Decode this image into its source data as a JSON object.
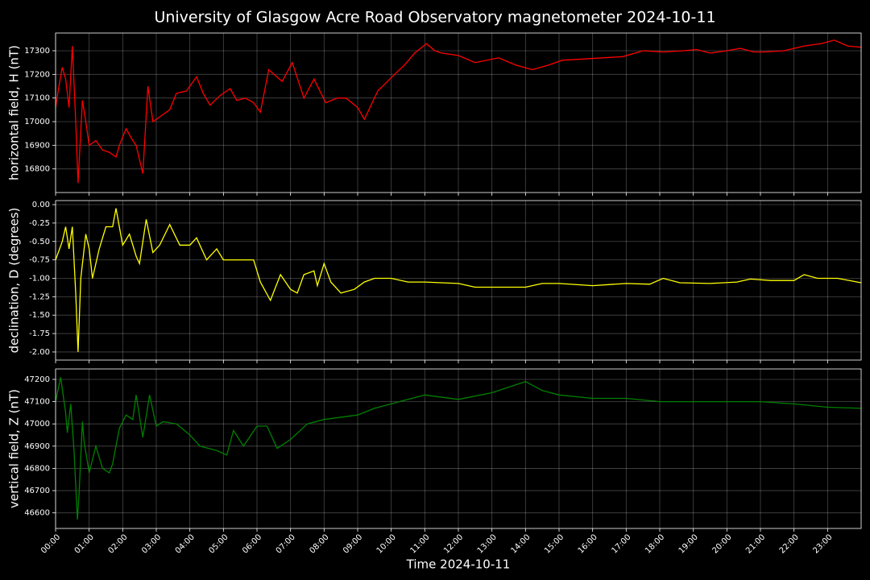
{
  "chart_data": [
    {
      "type": "line",
      "title": "University of Glasgow Acre Road Observatory magnetometer 2024-10-11",
      "ylabel": "horizontal field, H (nT)",
      "color": "#ff0000",
      "grid": true,
      "ylim": [
        16700,
        17375
      ],
      "yticks": [
        16800,
        16900,
        17000,
        17100,
        17200,
        17300
      ],
      "x": [
        0,
        0.1,
        0.2,
        0.3,
        0.4,
        0.5,
        0.6,
        0.67,
        0.8,
        0.9,
        1.0,
        1.2,
        1.4,
        1.6,
        1.8,
        1.9,
        2.1,
        2.3,
        2.4,
        2.6,
        2.75,
        2.9,
        3.1,
        3.4,
        3.6,
        3.9,
        4.2,
        4.4,
        4.6,
        4.9,
        5.2,
        5.4,
        5.65,
        5.9,
        6.1,
        6.35,
        6.75,
        7.05,
        7.4,
        7.7,
        8.05,
        8.4,
        8.65,
        9.0,
        9.2,
        9.6,
        10.1,
        10.4,
        10.7,
        11.05,
        11.3,
        11.5,
        12.0,
        12.5,
        13.2,
        13.7,
        14.2,
        14.7,
        15.1,
        15.7,
        16.3,
        16.9,
        17.5,
        18.1,
        18.7,
        19.1,
        19.5,
        20.0,
        20.4,
        20.8,
        21.1,
        21.7,
        22.3,
        22.8,
        23.2,
        23.6,
        24.0
      ],
      "values": [
        17060,
        17150,
        17230,
        17180,
        17060,
        17320,
        17000,
        16740,
        17090,
        17000,
        16900,
        16920,
        16880,
        16870,
        16850,
        16900,
        16970,
        16920,
        16900,
        16780,
        17150,
        17000,
        17020,
        17050,
        17120,
        17130,
        17190,
        17120,
        17070,
        17110,
        17140,
        17090,
        17100,
        17080,
        17040,
        17220,
        17170,
        17250,
        17100,
        17180,
        17080,
        17100,
        17100,
        17060,
        17010,
        17130,
        17200,
        17240,
        17290,
        17330,
        17300,
        17290,
        17280,
        17250,
        17270,
        17240,
        17220,
        17240,
        17260,
        17265,
        17270,
        17275,
        17300,
        17295,
        17300,
        17305,
        17290,
        17300,
        17310,
        17295,
        17295,
        17300,
        17320,
        17330,
        17345,
        17320,
        17315
      ]
    },
    {
      "type": "line",
      "ylabel": "declination, D (degrees)",
      "color": "#ffff00",
      "grid": true,
      "ylim": [
        -2.11,
        0.055
      ],
      "yticks": [
        {
          "value": 0,
          "label": "0.00"
        },
        {
          "value": -0.25,
          "label": "-0.25"
        },
        {
          "value": -0.5,
          "label": "-0.50"
        },
        {
          "value": -0.75,
          "label": "-0.75"
        },
        {
          "value": -1,
          "label": "-1.00"
        },
        {
          "value": -1.25,
          "label": "-1.25"
        },
        {
          "value": -1.5,
          "label": "-1.50"
        },
        {
          "value": -1.75,
          "label": "-1.75"
        },
        {
          "value": -2,
          "label": "-2.00"
        }
      ],
      "x": [
        0,
        0.2,
        0.3,
        0.4,
        0.5,
        0.6,
        0.67,
        0.75,
        0.9,
        1.0,
        1.1,
        1.3,
        1.5,
        1.7,
        1.8,
        2.0,
        2.2,
        2.4,
        2.5,
        2.7,
        2.9,
        3.1,
        3.4,
        3.7,
        4.0,
        4.2,
        4.5,
        4.8,
        5.0,
        5.5,
        5.9,
        6.1,
        6.4,
        6.7,
        7.0,
        7.2,
        7.4,
        7.7,
        7.8,
        8.0,
        8.2,
        8.5,
        8.9,
        9.2,
        9.5,
        10.0,
        10.5,
        11.0,
        12.0,
        12.5,
        13.0,
        14.0,
        14.5,
        15.0,
        16.0,
        17.0,
        17.7,
        18.1,
        18.6,
        19.5,
        20.3,
        20.7,
        21.3,
        22.0,
        22.3,
        22.7,
        23.3,
        24.0
      ],
      "values": [
        -0.75,
        -0.5,
        -0.3,
        -0.6,
        -0.3,
        -1.2,
        -2.0,
        -1.0,
        -0.4,
        -0.6,
        -1.0,
        -0.6,
        -0.3,
        -0.3,
        -0.05,
        -0.55,
        -0.4,
        -0.7,
        -0.8,
        -0.2,
        -0.65,
        -0.55,
        -0.27,
        -0.55,
        -0.55,
        -0.45,
        -0.75,
        -0.6,
        -0.75,
        -0.75,
        -0.75,
        -1.05,
        -1.3,
        -0.95,
        -1.15,
        -1.2,
        -0.95,
        -0.9,
        -1.1,
        -0.8,
        -1.05,
        -1.2,
        -1.15,
        -1.05,
        -1.0,
        -1.0,
        -1.05,
        -1.05,
        -1.07,
        -1.12,
        -1.12,
        -1.12,
        -1.07,
        -1.07,
        -1.1,
        -1.07,
        -1.08,
        -1.0,
        -1.06,
        -1.07,
        -1.05,
        -1.01,
        -1.03,
        -1.03,
        -0.95,
        -1.0,
        -1.0,
        -1.06
      ]
    },
    {
      "type": "line",
      "ylabel": "vertical field, Z (nT)",
      "xlabel": "Time 2024-10-11",
      "color": "#008000",
      "grid": true,
      "ylim": [
        46530,
        47247
      ],
      "yticks": [
        46600,
        46700,
        46800,
        46900,
        47000,
        47100,
        47200
      ],
      "xlim": [
        0,
        24
      ],
      "xticks": [
        {
          "value": 0,
          "label": "00:00"
        },
        {
          "value": 1,
          "label": "01:00"
        },
        {
          "value": 2,
          "label": "02:00"
        },
        {
          "value": 3,
          "label": "03:00"
        },
        {
          "value": 4,
          "label": "04:00"
        },
        {
          "value": 5,
          "label": "05:00"
        },
        {
          "value": 6,
          "label": "06:00"
        },
        {
          "value": 7,
          "label": "07:00"
        },
        {
          "value": 8,
          "label": "08:00"
        },
        {
          "value": 9,
          "label": "09:00"
        },
        {
          "value": 10,
          "label": "10:00"
        },
        {
          "value": 11,
          "label": "11:00"
        },
        {
          "value": 12,
          "label": "12:00"
        },
        {
          "value": 13,
          "label": "13:00"
        },
        {
          "value": 14,
          "label": "14:00"
        },
        {
          "value": 15,
          "label": "15:00"
        },
        {
          "value": 16,
          "label": "16:00"
        },
        {
          "value": 17,
          "label": "17:00"
        },
        {
          "value": 18,
          "label": "18:00"
        },
        {
          "value": 19,
          "label": "19:00"
        },
        {
          "value": 20,
          "label": "20:00"
        },
        {
          "value": 21,
          "label": "21:00"
        },
        {
          "value": 22,
          "label": "22:00"
        },
        {
          "value": 23,
          "label": "23:00"
        }
      ],
      "x": [
        0,
        0.15,
        0.3,
        0.35,
        0.45,
        0.55,
        0.65,
        0.7,
        0.8,
        0.85,
        1.0,
        1.2,
        1.4,
        1.6,
        1.7,
        1.9,
        2.1,
        2.3,
        2.4,
        2.6,
        2.8,
        3.0,
        3.2,
        3.6,
        4.0,
        4.3,
        4.8,
        5.1,
        5.3,
        5.6,
        6.0,
        6.3,
        6.6,
        7.0,
        7.5,
        8.0,
        9.0,
        9.5,
        10.5,
        11.0,
        12.0,
        13.0,
        14.0,
        14.5,
        15.0,
        16.0,
        17.0,
        18.0,
        19.0,
        20.0,
        21.0,
        22.0,
        23.0,
        24.0
      ],
      "values": [
        47100,
        47210,
        47050,
        46960,
        47090,
        46880,
        46570,
        46690,
        47010,
        46920,
        46780,
        46900,
        46800,
        46780,
        46820,
        46980,
        47040,
        47020,
        47130,
        46940,
        47130,
        46990,
        47010,
        47000,
        46950,
        46900,
        46880,
        46860,
        46970,
        46900,
        46990,
        46990,
        46890,
        46930,
        47000,
        47020,
        47040,
        47070,
        47110,
        47130,
        47110,
        47140,
        47190,
        47150,
        47130,
        47115,
        47115,
        47100,
        47100,
        47100,
        47100,
        47090,
        47075,
        47070
      ]
    }
  ]
}
